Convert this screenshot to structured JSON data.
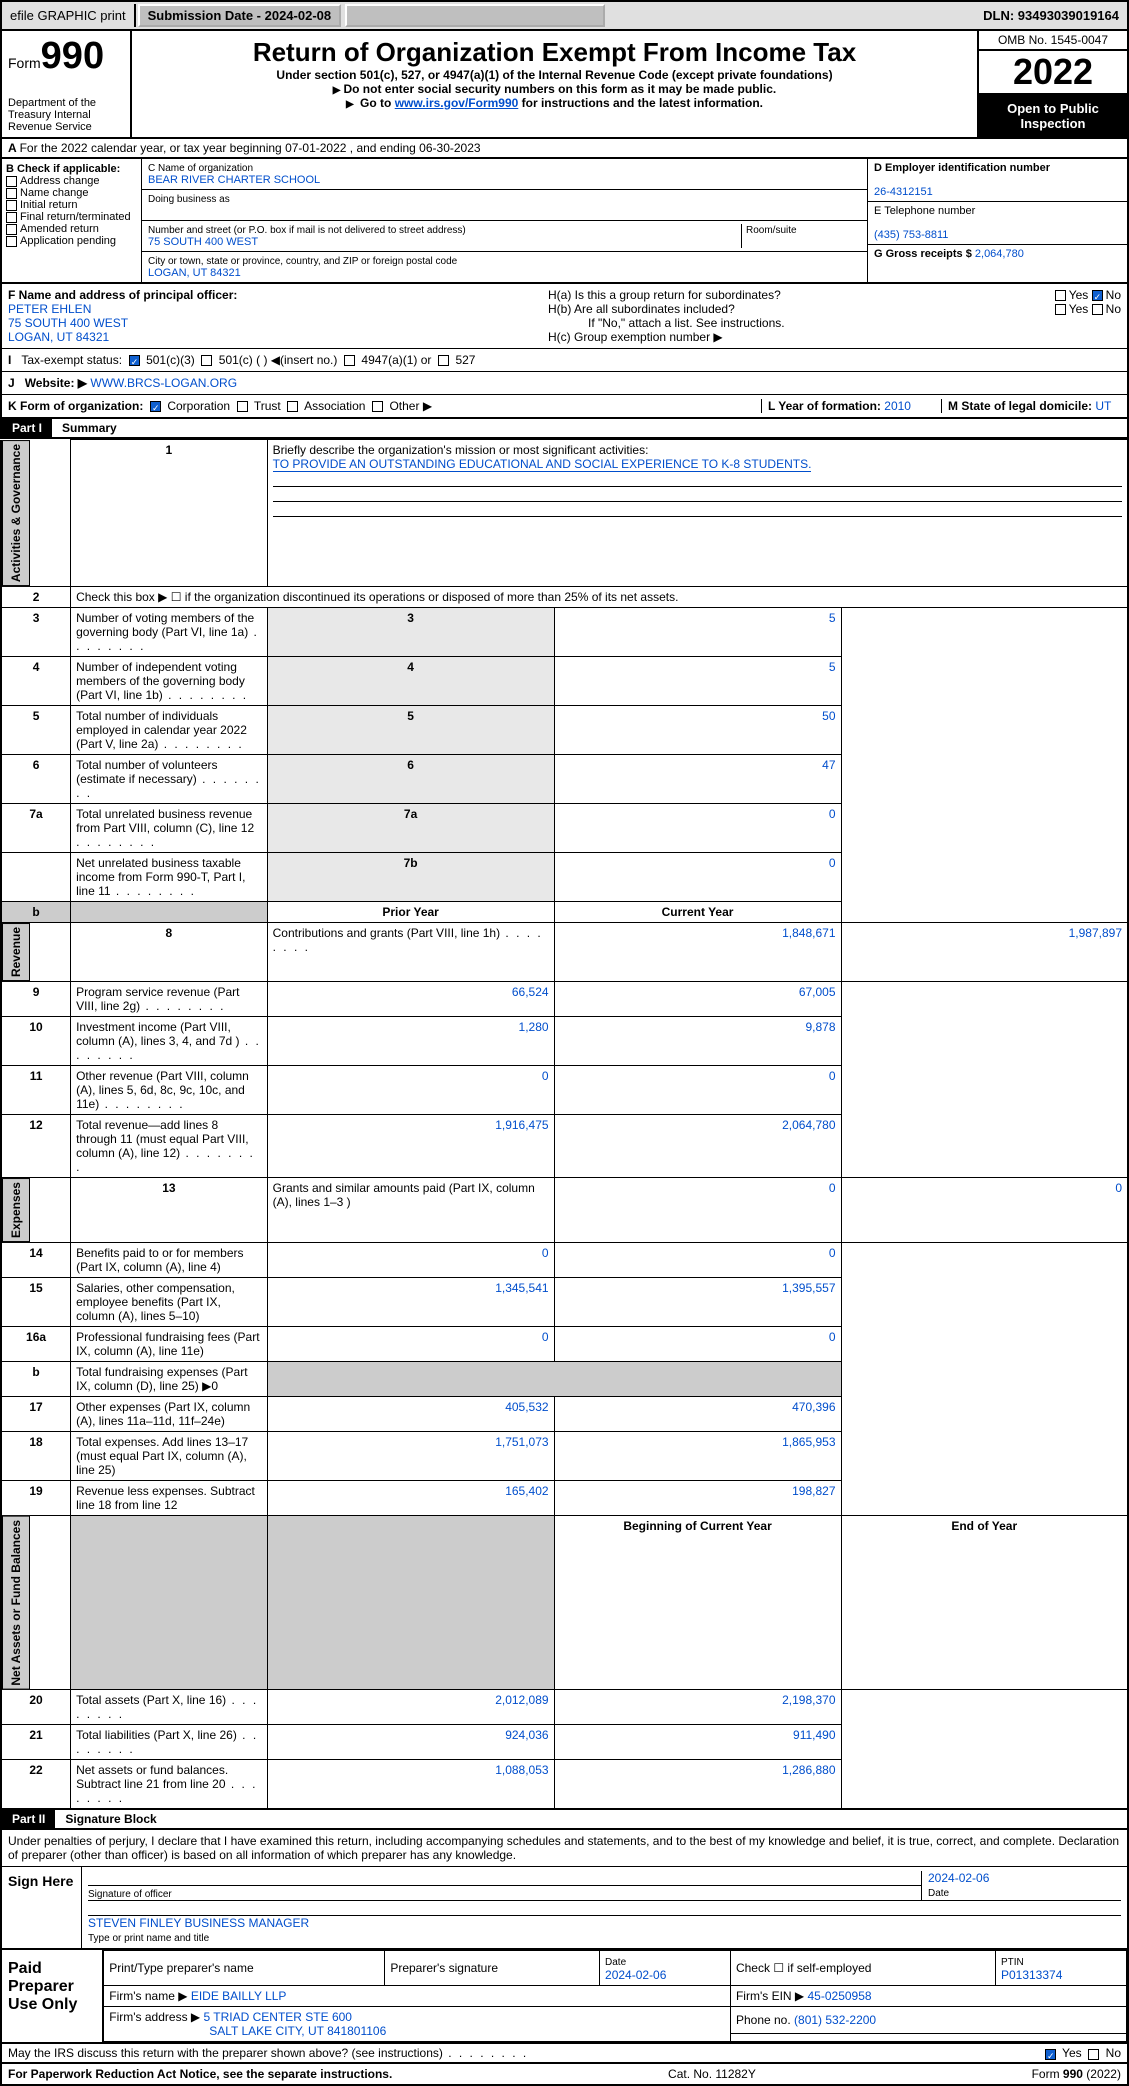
{
  "topbar": {
    "efile": "efile GRAPHIC print",
    "submission": "Submission Date - 2024-02-08",
    "dln": "DLN: 93493039019164"
  },
  "header": {
    "form_label": "Form",
    "form_num": "990",
    "dept": "Department of the Treasury Internal Revenue Service",
    "title": "Return of Organization Exempt From Income Tax",
    "sub1": "Under section 501(c), 527, or 4947(a)(1) of the Internal Revenue Code (except private foundations)",
    "sub2": "Do not enter social security numbers on this form as it may be made public.",
    "sub3_prefix": "Go to ",
    "sub3_link": "www.irs.gov/Form990",
    "sub3_suffix": " for instructions and the latest information.",
    "omb": "OMB No. 1545-0047",
    "year": "2022",
    "badge": "Open to Public Inspection"
  },
  "row_a": "For the 2022 calendar year, or tax year beginning 07-01-2022    , and ending 06-30-2023",
  "section_b": {
    "label": "B Check if applicable:",
    "opts": [
      "Address change",
      "Name change",
      "Initial return",
      "Final return/terminated",
      "Amended return",
      "Application pending"
    ]
  },
  "section_c": {
    "name_label": "C Name of organization",
    "name": "BEAR RIVER CHARTER SCHOOL",
    "dba_label": "Doing business as",
    "street_label": "Number and street (or P.O. box if mail is not delivered to street address)",
    "room_label": "Room/suite",
    "street": "75 SOUTH 400 WEST",
    "city_label": "City or town, state or province, country, and ZIP or foreign postal code",
    "city": "LOGAN, UT  84321"
  },
  "section_d": {
    "label": "D Employer identification number",
    "val": "26-4312151"
  },
  "section_e": {
    "label": "E Telephone number",
    "val": "(435) 753-8811"
  },
  "section_g": {
    "label": "G Gross receipts $",
    "val": "2,064,780"
  },
  "section_f": {
    "label": "F  Name and address of principal officer:",
    "name": "PETER EHLEN",
    "street": "75 SOUTH 400 WEST",
    "city": "LOGAN, UT  84321"
  },
  "section_h": {
    "a": "H(a)  Is this a group return for subordinates?",
    "b": "H(b)  Are all subordinates included?",
    "b_note": "If \"No,\" attach a list. See instructions.",
    "c": "H(c)  Group exemption number ▶",
    "yes": "Yes",
    "no": "No"
  },
  "section_i": {
    "label": "Tax-exempt status:",
    "o1": "501(c)(3)",
    "o2": "501(c) (  ) ◀(insert no.)",
    "o3": "4947(a)(1) or",
    "o4": "527"
  },
  "section_j": {
    "label": "Website: ▶",
    "val": "WWW.BRCS-LOGAN.ORG"
  },
  "section_k": {
    "label": "K Form of organization:",
    "o1": "Corporation",
    "o2": "Trust",
    "o3": "Association",
    "o4": "Other ▶"
  },
  "section_l": {
    "label": "L Year of formation:",
    "val": "2010"
  },
  "section_m": {
    "label": "M State of legal domicile:",
    "val": "UT"
  },
  "part1": {
    "hdr": "Part I",
    "title": "Summary",
    "q1_label": "Briefly describe the organization's mission or most significant activities:",
    "q1_val": "TO PROVIDE AN OUTSTANDING EDUCATIONAL AND SOCIAL EXPERIENCE TO K-8 STUDENTS.",
    "q2": "Check this box ▶ ☐  if the organization discontinued its operations or disposed of more than 25% of its net assets.",
    "rows_a": [
      {
        "n": "3",
        "t": "Number of voting members of the governing body (Part VI, line 1a)",
        "b": "3",
        "v": "5"
      },
      {
        "n": "4",
        "t": "Number of independent voting members of the governing body (Part VI, line 1b)",
        "b": "4",
        "v": "5"
      },
      {
        "n": "5",
        "t": "Total number of individuals employed in calendar year 2022 (Part V, line 2a)",
        "b": "5",
        "v": "50"
      },
      {
        "n": "6",
        "t": "Total number of volunteers (estimate if necessary)",
        "b": "6",
        "v": "47"
      },
      {
        "n": "7a",
        "t": "Total unrelated business revenue from Part VIII, column (C), line 12",
        "b": "7a",
        "v": "0"
      },
      {
        "n": "",
        "t": "Net unrelated business taxable income from Form 990-T, Part I, line 11",
        "b": "7b",
        "v": "0"
      }
    ],
    "col_prior": "Prior Year",
    "col_curr": "Current Year",
    "rev": [
      {
        "n": "8",
        "t": "Contributions and grants (Part VIII, line 1h)",
        "p": "1,848,671",
        "c": "1,987,897"
      },
      {
        "n": "9",
        "t": "Program service revenue (Part VIII, line 2g)",
        "p": "66,524",
        "c": "67,005"
      },
      {
        "n": "10",
        "t": "Investment income (Part VIII, column (A), lines 3, 4, and 7d )",
        "p": "1,280",
        "c": "9,878"
      },
      {
        "n": "11",
        "t": "Other revenue (Part VIII, column (A), lines 5, 6d, 8c, 9c, 10c, and 11e)",
        "p": "0",
        "c": "0"
      },
      {
        "n": "12",
        "t": "Total revenue—add lines 8 through 11 (must equal Part VIII, column (A), line 12)",
        "p": "1,916,475",
        "c": "2,064,780"
      }
    ],
    "exp": [
      {
        "n": "13",
        "t": "Grants and similar amounts paid (Part IX, column (A), lines 1–3 )",
        "p": "0",
        "c": "0"
      },
      {
        "n": "14",
        "t": "Benefits paid to or for members (Part IX, column (A), line 4)",
        "p": "0",
        "c": "0"
      },
      {
        "n": "15",
        "t": "Salaries, other compensation, employee benefits (Part IX, column (A), lines 5–10)",
        "p": "1,345,541",
        "c": "1,395,557"
      },
      {
        "n": "16a",
        "t": "Professional fundraising fees (Part IX, column (A), line 11e)",
        "p": "0",
        "c": "0"
      },
      {
        "n": "b",
        "t": "Total fundraising expenses (Part IX, column (D), line 25) ▶0",
        "p": "",
        "c": ""
      },
      {
        "n": "17",
        "t": "Other expenses (Part IX, column (A), lines 11a–11d, 11f–24e)",
        "p": "405,532",
        "c": "470,396"
      },
      {
        "n": "18",
        "t": "Total expenses. Add lines 13–17 (must equal Part IX, column (A), line 25)",
        "p": "1,751,073",
        "c": "1,865,953"
      },
      {
        "n": "19",
        "t": "Revenue less expenses. Subtract line 18 from line 12",
        "p": "165,402",
        "c": "198,827"
      }
    ],
    "col_beg": "Beginning of Current Year",
    "col_end": "End of Year",
    "na": [
      {
        "n": "20",
        "t": "Total assets (Part X, line 16)",
        "p": "2,012,089",
        "c": "2,198,370"
      },
      {
        "n": "21",
        "t": "Total liabilities (Part X, line 26)",
        "p": "924,036",
        "c": "911,490"
      },
      {
        "n": "22",
        "t": "Net assets or fund balances. Subtract line 21 from line 20",
        "p": "1,088,053",
        "c": "1,286,880"
      }
    ],
    "vert": {
      "ag": "Activities & Governance",
      "rev": "Revenue",
      "exp": "Expenses",
      "na": "Net Assets or Fund Balances"
    }
  },
  "part2": {
    "hdr": "Part II",
    "title": "Signature Block",
    "decl": "Under penalties of perjury, I declare that I have examined this return, including accompanying schedules and statements, and to the best of my knowledge and belief, it is true, correct, and complete. Declaration of preparer (other than officer) is based on all information of which preparer has any knowledge.",
    "sign_here": "Sign Here",
    "sig_officer": "Signature of officer",
    "date": "Date",
    "date_val": "2024-02-06",
    "name_title": "STEVEN FINLEY  BUSINESS MANAGER",
    "name_title_lab": "Type or print name and title"
  },
  "prep": {
    "label": "Paid Preparer Use Only",
    "h": [
      "Print/Type preparer's name",
      "Preparer's signature",
      "Date",
      "",
      "PTIN"
    ],
    "date": "2024-02-06",
    "check": "Check ☐ if self-employed",
    "ptin": "P01313374",
    "firm_name_lab": "Firm's name    ▶",
    "firm_name": "EIDE BAILLY LLP",
    "firm_ein_lab": "Firm's EIN ▶",
    "firm_ein": "45-0250958",
    "firm_addr_lab": "Firm's address ▶",
    "firm_addr1": "5 TRIAD CENTER STE 600",
    "firm_addr2": "SALT LAKE CITY, UT  841801106",
    "phone_lab": "Phone no.",
    "phone": "(801) 532-2200"
  },
  "may_discuss": "May the IRS discuss this return with the preparer shown above? (see instructions)",
  "footer": {
    "l": "For Paperwork Reduction Act Notice, see the separate instructions.",
    "c": "Cat. No. 11282Y",
    "r": "Form 990 (2022)"
  }
}
